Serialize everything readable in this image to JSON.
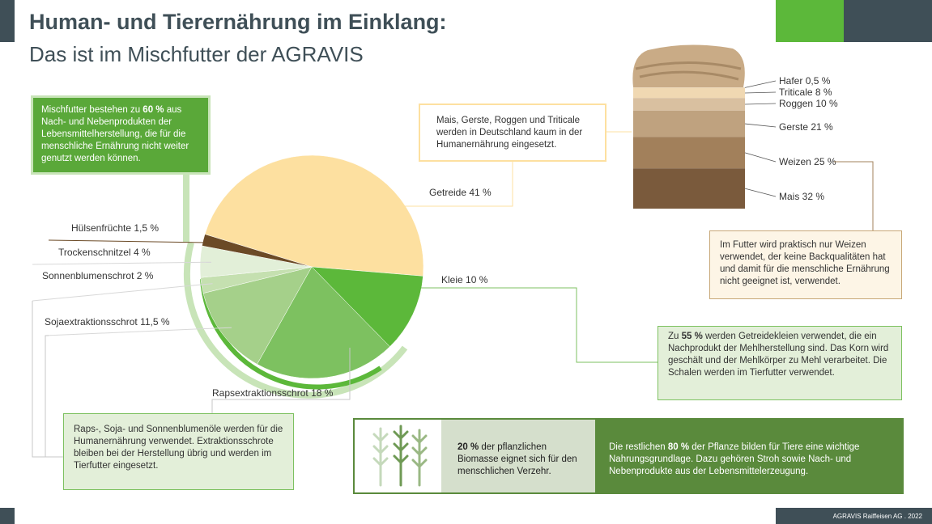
{
  "page": {
    "title": "Human- und Tierernährung im Einklang:",
    "subtitle": "Das ist im Mischfutter der AGRAVIS",
    "box_mischfutter": [
      "Mischfutter bestehen zu ",
      "60 %",
      " aus Nach- und Nebenprodukten der Lebensmittelherstellung, die für die menschliche Ernährung nicht weiter genutzt werden können."
    ],
    "box_getreide": "Mais, Gerste, Roggen und Triticale werden in Deutschland kaum in der Humanernährung eingesetzt.",
    "box_weizen": "Im Futter wird praktisch nur Weizen verwendet, der keine Backqualitäten hat und damit für die menschliche Ernährung nicht geeignet ist, verwendet.",
    "box_kleie": [
      "Zu ",
      "55 %",
      " werden Getreidekleien verwendet, die ein Nachprodukt der Mehlherstellung sind. Das Korn wird geschält und der Mehlkörper zu Mehl verarbeitet. Die Schalen werden im Tierfutter verwendet."
    ],
    "box_schrote": "Raps-, Soja- und Sonnenblumenöle werden für die Humanernährung verwendet. Extraktionsschrote bleiben bei der Herstellung übrig und werden im Tierfutter eingesetzt.",
    "box_biomasse": [
      "20 %",
      " der pflanzlichen Biomasse eignet sich für den menschlichen Verzehr."
    ],
    "box_rest": [
      "Die restlichen ",
      "80 %",
      " der Pflanze bilden für Tiere eine wichtige Nahrungsgrundlage. Dazu gehören Stroh sowie Nach- und Nebenprodukte aus der Lebensmittelerzeugung."
    ],
    "footer": "AGRAVIS Raiffeisen AG  .  2022"
  },
  "chart_data": [
    {
      "type": "pie",
      "categories": [
        "Getreide",
        "Kleie",
        "Rapsextraktionsschrot",
        "Sojaextraktionsschrot",
        "Sonnenblumenschrot",
        "Trockenschnitzel",
        "Hülsenfrüchte"
      ],
      "values": [
        41,
        10,
        18,
        11.5,
        2,
        4,
        1.5
      ],
      "value_labels": [
        "41 %",
        "10 %",
        "18 %",
        "11,5 %",
        "2 %",
        "4 %",
        "1,5 %"
      ],
      "colors": [
        "#fde0a0",
        "#5cb83a",
        "#7dc160",
        "#a5d08a",
        "#c5e0b0",
        "#e2efd8",
        "#6b4a26"
      ]
    },
    {
      "type": "stack",
      "categories": [
        "Hafer",
        "Triticale",
        "Roggen",
        "Gerste",
        "Weizen",
        "Mais"
      ],
      "values": [
        0.5,
        8,
        10,
        21,
        25,
        32
      ],
      "value_labels": [
        "0,5 %",
        "8 %",
        "10 %",
        "21 %",
        "25 %",
        "32 %"
      ],
      "colors": [
        "#e9d3b3",
        "#f0d8b2",
        "#d9c0a0",
        "#bfa27f",
        "#a2805b",
        "#7a5a3c"
      ]
    }
  ]
}
